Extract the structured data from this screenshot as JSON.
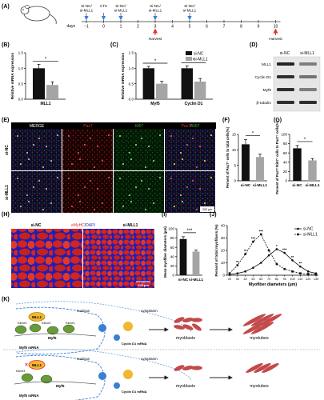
{
  "panels": {
    "A": "(A)",
    "B": "(B)",
    "C": "(C)",
    "D": "(D)",
    "E": "(E)",
    "F": "(F)",
    "G": "(G)",
    "H": "(H)",
    "I": "(I)",
    "J": "(J)",
    "K": "(K)"
  },
  "panelA": {
    "days_label": "days",
    "days": [
      "−1",
      "0",
      "1",
      "2",
      "3",
      "4",
      "5",
      "6",
      "7",
      "8",
      "9",
      "10"
    ],
    "events": [
      {
        "day": "−1",
        "label": "Si-NC/ si-MLL1"
      },
      {
        "day": "0",
        "label": "CTX"
      },
      {
        "day": "1",
        "label": "Si-NC/ si-MLL1"
      },
      {
        "day": "3",
        "label": "Si-NC/ si-MLL1"
      },
      {
        "day": "5",
        "label": "Si-NC/ si-MLL1"
      }
    ],
    "harvests": [
      {
        "day": "3",
        "label": "Harvest"
      },
      {
        "day": "10",
        "label": "Harvest"
      }
    ],
    "colors": {
      "blue_arrow": "#3a7fd5",
      "red_arrow": "#e0302a"
    }
  },
  "panelB": {
    "chart_data": {
      "type": "bar",
      "ylabel": "Relative mRNA expression",
      "ylim": [
        0,
        1.5
      ],
      "yticks": [
        "0.0",
        "0.5",
        "1.0",
        "1.5"
      ],
      "categories": [
        "MLL1"
      ],
      "series": [
        {
          "name": "si-NC",
          "values": [
            1.0
          ],
          "err": [
            0.13
          ]
        },
        {
          "name": "si-MLL1",
          "values": [
            0.46
          ],
          "err": [
            0.1
          ]
        }
      ],
      "significance": [
        {
          "label": "*"
        }
      ]
    }
  },
  "panelC": {
    "chart_data": {
      "type": "bar",
      "ylabel": "Relative mRNA expression",
      "ylim": [
        0,
        1.5
      ],
      "yticks": [
        "0.0",
        "0.5",
        "1.0",
        "1.5"
      ],
      "categories": [
        "Myf5",
        "Cyclin D1"
      ],
      "series": [
        {
          "name": "si-NC",
          "values": [
            1.0,
            1.0
          ],
          "err": [
            0.06,
            0.08
          ]
        },
        {
          "name": "si-MLL1",
          "values": [
            0.5,
            0.57
          ],
          "err": [
            0.08,
            0.1
          ]
        }
      ],
      "significance": [
        {
          "label": "*"
        },
        {
          "label": "*"
        }
      ],
      "legend": [
        "si-NC",
        "si-MLL1"
      ]
    }
  },
  "panelD": {
    "columns": [
      "si-NC",
      "si-MLL1"
    ],
    "rows": [
      "MLL1",
      "Cyclin D1",
      "Myf5",
      "β-tubulin"
    ]
  },
  "panelE": {
    "columns": [
      "MERGE",
      "Pax7",
      "Ki67",
      "Pax7/Ki67"
    ],
    "rows": [
      "si-NC",
      "si-MLL1"
    ],
    "scale": "200 μm",
    "colors": {
      "Pax7": "#e0302a",
      "Ki67": "#3ab53a",
      "slash": "#ffffff"
    }
  },
  "panelF": {
    "chart_data": {
      "type": "bar",
      "ylabel": "Persent of Pax7⁺ cells to tatal cells(%)",
      "ylim": [
        0,
        15
      ],
      "yticks": [
        "0",
        "5",
        "10",
        "15"
      ],
      "categories": [
        "si-NC",
        "si-MLL1"
      ],
      "values": [
        11.8,
        7.7
      ],
      "err": [
        1.5,
        0.9
      ],
      "significance": "*"
    }
  },
  "panelG": {
    "chart_data": {
      "type": "bar",
      "ylabel": "Persent of Pax7⁺/Ki67⁺ cells to Pax7⁺ cells(%)",
      "ylim": [
        0,
        100
      ],
      "yticks": [
        "0",
        "20",
        "40",
        "60",
        "80",
        "100"
      ],
      "categories": [
        "si-NC",
        "si-MLL1"
      ],
      "values": [
        70,
        44
      ],
      "err": [
        6,
        4
      ],
      "significance": "*"
    }
  },
  "panelH": {
    "columns": [
      "si-NC",
      "si-MLL1"
    ],
    "stain": "eMyHC/DAPI",
    "scale": "100 μm"
  },
  "panelI": {
    "chart_data": {
      "type": "bar",
      "ylabel": "Mean myofiber diameters (μm)",
      "ylim": [
        0,
        100
      ],
      "yticks": [
        "0",
        "20",
        "40",
        "60",
        "80",
        "100"
      ],
      "categories": [
        "si-NC",
        "si-MLL1"
      ],
      "values": [
        78,
        51
      ],
      "err": [
        5,
        3
      ],
      "significance": "***"
    }
  },
  "panelJ": {
    "chart_data": {
      "type": "line",
      "xlabel": "Myofiber diameters (μm)",
      "ylabel": "Persent of total myofibers (%)",
      "ylim": [
        0,
        40
      ],
      "yticks": [
        "0",
        "10",
        "20",
        "30",
        "40"
      ],
      "x": [
        20,
        30,
        40,
        50,
        60,
        70,
        80,
        90,
        100,
        110,
        120,
        130
      ],
      "xticks": [
        "20",
        "30",
        "40",
        "50",
        "60",
        "70",
        "80",
        "90",
        "100",
        "110",
        "120",
        "130"
      ],
      "series": [
        {
          "name": "si-NC",
          "values": [
            0.5,
            1.5,
            3,
            6,
            10,
            16,
            21,
            18,
            12,
            7,
            3,
            1.5
          ]
        },
        {
          "name": "si-MLL1",
          "values": [
            1.5,
            8,
            17,
            27,
            33,
            20,
            9,
            5,
            3,
            1.5,
            1,
            0.5
          ]
        }
      ],
      "annotations": [
        {
          "x": 30,
          "label": "**"
        },
        {
          "x": 40,
          "label": "**"
        },
        {
          "x": 50,
          "label": "***"
        },
        {
          "x": 60,
          "label": "***"
        },
        {
          "x": 80,
          "label": "*"
        },
        {
          "x": 90,
          "label": "***"
        },
        {
          "x": 100,
          "label": "**"
        },
        {
          "x": 110,
          "label": "**"
        }
      ],
      "legend": [
        "si-NC",
        "si-MLL1"
      ]
    }
  },
  "panelK": {
    "top": {
      "nucleus": "nucleus",
      "cytoplasm": "cytoplasm",
      "enzyme": "MLL1",
      "marks": [
        "K4me3",
        "K4me3",
        "K4me3"
      ],
      "gene": "Myf5",
      "mrna": "Myf5 mRNA",
      "cyclin": "Cyclin D1 mRNA",
      "cells": [
        "myoblasts",
        "myotubes"
      ]
    },
    "bottom": {
      "nucleus": "nucleus",
      "cytoplasm": "cytoplasm",
      "enzyme": "MLL1",
      "marks": [
        "K4me3"
      ],
      "gene": "Myf5",
      "mrna": "Myf5 mRNA",
      "cyclin": "Cyclin D1 mRNA",
      "cells": [
        "myoblasts",
        "myotubes"
      ]
    }
  }
}
